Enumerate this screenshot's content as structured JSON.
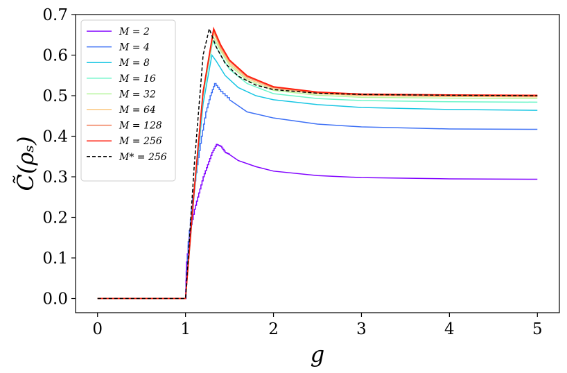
{
  "chart_data": {
    "type": "line",
    "xlabel": "g",
    "ylabel": "C̃(ρₛ)",
    "xlim": [
      -0.25,
      5.25
    ],
    "ylim": [
      -0.035,
      0.7
    ],
    "xticks": [
      0,
      1,
      2,
      3,
      4,
      5
    ],
    "xtick_labels": [
      "0",
      "1",
      "2",
      "3",
      "4",
      "5"
    ],
    "yticks": [
      0.0,
      0.1,
      0.2,
      0.3,
      0.4,
      0.5,
      0.6,
      0.7
    ],
    "ytick_labels": [
      "0.0",
      "0.1",
      "0.2",
      "0.3",
      "0.4",
      "0.5",
      "0.6",
      "0.7"
    ],
    "grid": false,
    "legend": "upper-left",
    "series": [
      {
        "name": "M = 2",
        "color": "#8000ff",
        "dash": "solid",
        "stepped": true,
        "x": [
          0,
          1.0,
          1.01,
          1.05,
          1.1,
          1.15,
          1.2,
          1.25,
          1.3,
          1.35,
          1.4,
          1.45,
          1.5,
          1.6,
          1.8,
          2.0,
          2.5,
          3.0,
          4.0,
          5.0
        ],
        "y": [
          0,
          0,
          0.09,
          0.17,
          0.22,
          0.26,
          0.3,
          0.33,
          0.36,
          0.38,
          0.375,
          0.36,
          0.355,
          0.34,
          0.325,
          0.314,
          0.303,
          0.298,
          0.295,
          0.294
        ]
      },
      {
        "name": "M = 4",
        "color": "#3d70f5",
        "dash": "solid",
        "stepped": true,
        "x": [
          0,
          1.0,
          1.03,
          1.08,
          1.13,
          1.18,
          1.23,
          1.28,
          1.33,
          1.4,
          1.5,
          1.7,
          2.0,
          2.5,
          3.0,
          4.0,
          5.0
        ],
        "y": [
          0,
          0,
          0.14,
          0.25,
          0.33,
          0.4,
          0.46,
          0.5,
          0.53,
          0.51,
          0.49,
          0.46,
          0.445,
          0.43,
          0.423,
          0.418,
          0.417
        ]
      },
      {
        "name": "M = 8",
        "color": "#17c6e3",
        "dash": "solid",
        "stepped": false,
        "x": [
          0,
          1.0,
          1.1,
          1.2,
          1.3,
          1.35,
          1.45,
          1.6,
          1.8,
          2.0,
          2.5,
          3.0,
          4.0,
          5.0
        ],
        "y": [
          0,
          0,
          0.26,
          0.48,
          0.6,
          0.585,
          0.55,
          0.52,
          0.5,
          0.49,
          0.478,
          0.471,
          0.466,
          0.464
        ]
      },
      {
        "name": "M = 16",
        "color": "#6af5c8",
        "dash": "solid",
        "stepped": false,
        "x": [
          0,
          1.0,
          1.1,
          1.2,
          1.31,
          1.4,
          1.5,
          1.7,
          2.0,
          2.5,
          3.0,
          4.0,
          5.0
        ],
        "y": [
          0,
          0,
          0.27,
          0.5,
          0.635,
          0.6,
          0.565,
          0.53,
          0.505,
          0.493,
          0.488,
          0.485,
          0.484
        ]
      },
      {
        "name": "M = 32",
        "color": "#b5f59a",
        "dash": "solid",
        "stepped": false,
        "x": [
          0,
          1.0,
          1.1,
          1.2,
          1.31,
          1.4,
          1.5,
          1.7,
          2.0,
          2.5,
          3.0,
          4.0,
          5.0
        ],
        "y": [
          0,
          0,
          0.27,
          0.51,
          0.648,
          0.61,
          0.575,
          0.538,
          0.513,
          0.501,
          0.496,
          0.494,
          0.493
        ]
      },
      {
        "name": "M = 64",
        "color": "#fcc57c",
        "dash": "solid",
        "stepped": false,
        "x": [
          0,
          1.0,
          1.1,
          1.2,
          1.32,
          1.4,
          1.5,
          1.7,
          2.0,
          2.5,
          3.0,
          4.0,
          5.0
        ],
        "y": [
          0,
          0,
          0.27,
          0.51,
          0.655,
          0.615,
          0.58,
          0.542,
          0.517,
          0.505,
          0.5,
          0.498,
          0.497
        ]
      },
      {
        "name": "M = 128",
        "color": "#f07a55",
        "dash": "solid",
        "stepped": false,
        "x": [
          0,
          1.0,
          1.1,
          1.2,
          1.32,
          1.4,
          1.5,
          1.7,
          2.0,
          2.5,
          3.0,
          4.0,
          5.0
        ],
        "y": [
          0,
          0,
          0.27,
          0.51,
          0.66,
          0.62,
          0.585,
          0.546,
          0.52,
          0.507,
          0.502,
          0.5,
          0.499
        ]
      },
      {
        "name": "M = 256",
        "color": "#ff1a0a",
        "dash": "solid",
        "stepped": false,
        "x": [
          0,
          1.0,
          1.1,
          1.2,
          1.32,
          1.4,
          1.5,
          1.7,
          2.0,
          2.5,
          3.0,
          4.0,
          5.0
        ],
        "y": [
          0,
          0,
          0.27,
          0.51,
          0.665,
          0.625,
          0.588,
          0.549,
          0.522,
          0.509,
          0.504,
          0.502,
          0.501
        ]
      },
      {
        "name": "M* = 256",
        "color": "#000000",
        "dash": "dashed",
        "stepped": false,
        "x": [
          0,
          1.0,
          1.1,
          1.2,
          1.27,
          1.35,
          1.45,
          1.6,
          1.8,
          2.0,
          2.5,
          3.0,
          4.0,
          5.0
        ],
        "y": [
          0,
          0,
          0.33,
          0.6,
          0.665,
          0.62,
          0.58,
          0.548,
          0.526,
          0.515,
          0.506,
          0.503,
          0.501,
          0.5
        ]
      }
    ]
  }
}
